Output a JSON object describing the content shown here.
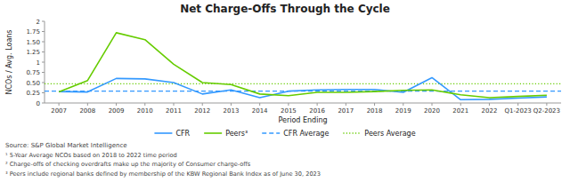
{
  "chart_data": {
    "type": "line",
    "title": "Net Charge-Offs Through the Cycle",
    "x_label": "Period Ending",
    "y_label": "NCOs / Avg. Loans",
    "categories": [
      "2007",
      "2008",
      "2009",
      "2010",
      "2011",
      "2012",
      "2013",
      "2014",
      "2015",
      "2016",
      "2017",
      "2018",
      "2019",
      "2020",
      "2021",
      "2022",
      "Q1-2023",
      "Q2-2023"
    ],
    "series": [
      {
        "name": "CFR",
        "color": "#3399ff",
        "line_style": "solid",
        "values": [
          0.28,
          0.27,
          0.6,
          0.59,
          0.5,
          0.22,
          0.32,
          0.13,
          0.29,
          0.32,
          0.33,
          0.33,
          0.26,
          0.62,
          0.08,
          0.09,
          0.12,
          0.15
        ]
      },
      {
        "name": "Peers³",
        "color": "#66cc00",
        "line_style": "solid",
        "values": [
          0.27,
          0.55,
          1.72,
          1.55,
          0.95,
          0.5,
          0.45,
          0.22,
          0.18,
          0.26,
          0.26,
          0.28,
          0.31,
          0.32,
          0.2,
          0.13,
          0.16,
          0.19
        ]
      },
      {
        "name": "CFR Average",
        "type": "hline",
        "color": "#3399ff",
        "line_style": "dashed",
        "value": 0.29
      },
      {
        "name": "Peers Average",
        "type": "hline",
        "color": "#66cc00",
        "line_style": "dotted",
        "value": 0.47
      }
    ],
    "ylim": [
      0,
      2.0
    ],
    "yticks": [
      0,
      0.25,
      {
        "value": 0.5,
        "label": "0.50"
      },
      0.75,
      1,
      1.25,
      {
        "value": 1.5,
        "label": "1.50"
      },
      1.75,
      2
    ],
    "grid": false,
    "legend": "bottom",
    "annotations": [
      "Source: S&P Global Market Intelligence",
      "¹ 5-Year Average NCOs based on 2018 to 2022 time period",
      "² Charge-offs of checking overdrafts make up the majority of Consumer charge-offs",
      "³ Peers include regional banks defined by membership of the KBW Regional Bank Index as of June 30, 2023"
    ]
  }
}
